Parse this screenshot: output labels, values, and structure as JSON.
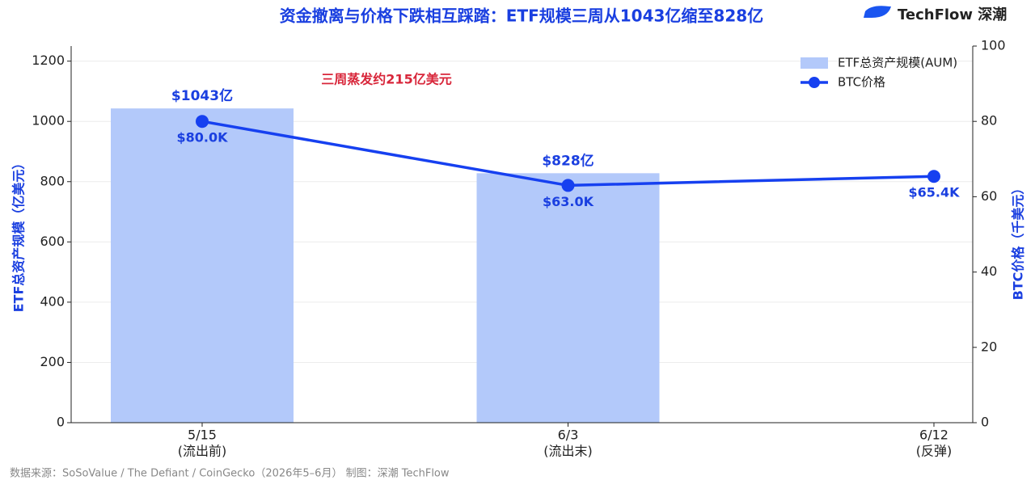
{
  "chart_data": {
    "type": "bar-line",
    "title": "资金撤离与价格下跌相互踩踏：ETF规模三周从1043亿缩至828亿",
    "brand": "TechFlow 深潮",
    "annotation": "三周蒸发约215亿美元",
    "source": "数据来源：SoSoValue / The Defiant / CoinGecko（2026年5–6月）  制图：深潮 TechFlow",
    "categories": [
      [
        "5/15",
        "(流出前)"
      ],
      [
        "6/3",
        "(流出末)"
      ],
      [
        "6/12",
        "(反弹)"
      ]
    ],
    "ylabel": "ETF总资产规模（亿美元）",
    "y2label": "BTC价格（千美元）",
    "ylim": [
      0,
      1250
    ],
    "yticks": [
      0,
      200,
      400,
      600,
      800,
      1000,
      1200
    ],
    "y2lim": [
      0,
      100
    ],
    "y2ticks": [
      0,
      20,
      40,
      60,
      80,
      100
    ],
    "grid": true,
    "legend": "upper right",
    "series": [
      {
        "name": "ETF总资产规模(AUM)",
        "type": "bar",
        "color": "#b3c9fa",
        "values": [
          1043,
          828,
          null
        ],
        "value_labels": [
          "$1043亿",
          "$828亿",
          null
        ]
      },
      {
        "name": "BTC价格",
        "type": "line",
        "axis": "y2",
        "color": "#1640f0",
        "values": [
          80.0,
          63.0,
          65.4
        ],
        "value_labels": [
          "$80.0K",
          "$63.0K",
          "$65.4K"
        ]
      }
    ]
  }
}
